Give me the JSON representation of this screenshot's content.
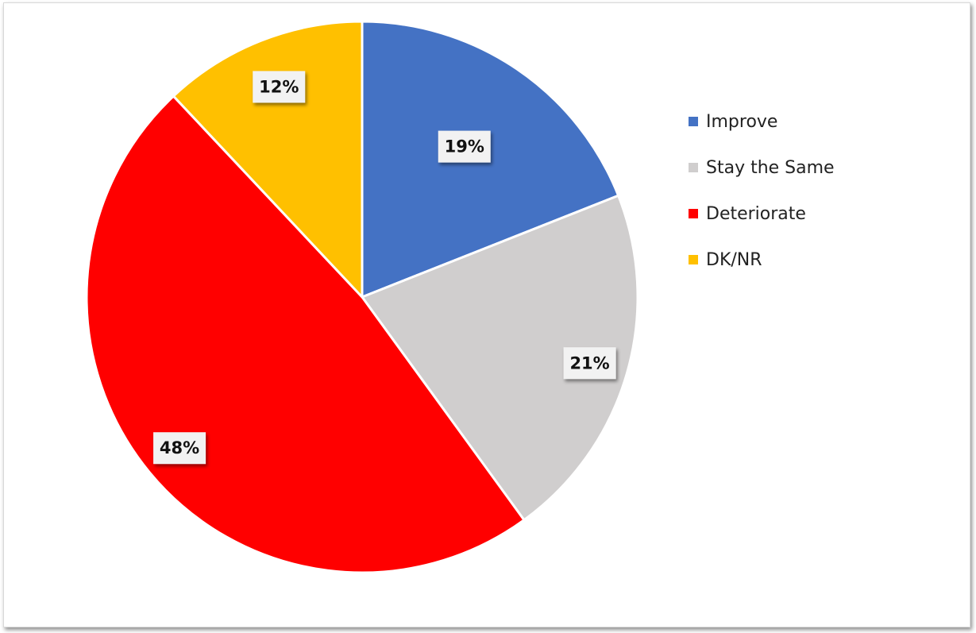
{
  "chart_data": {
    "type": "pie",
    "categories": [
      "Improve",
      "Stay the Same",
      "Deteriorate",
      "DK/NR"
    ],
    "values": [
      19,
      21,
      48,
      12
    ],
    "labels": [
      "19%",
      "21%",
      "48%",
      "12%"
    ],
    "colors": [
      "#4472c4",
      "#d0cece",
      "#ff0000",
      "#ffc000"
    ],
    "legend_position": "right",
    "start_angle": "12 o'clock, clockwise"
  }
}
